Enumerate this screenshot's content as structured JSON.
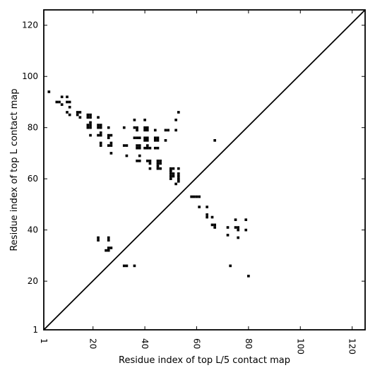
{
  "chart_data": {
    "type": "scatter",
    "title": "",
    "xlabel": "Residue index of top L/5 contact map",
    "ylabel": "Residue index of top L contact map",
    "xlim": [
      1,
      125
    ],
    "ylim": [
      1,
      126
    ],
    "xticks": [
      1,
      20,
      40,
      60,
      80,
      100,
      120
    ],
    "yticks": [
      1,
      20,
      40,
      60,
      80,
      100,
      120
    ],
    "x_tick_rotation": 90,
    "grid": false,
    "diagonal_line": true,
    "marker": "square",
    "marker_color": "#000000",
    "lower_triangle_points": [
      [
        22,
        37
      ],
      [
        22,
        36
      ],
      [
        26,
        37
      ],
      [
        26,
        36
      ],
      [
        26,
        33
      ],
      [
        27,
        33
      ],
      [
        25,
        32
      ],
      [
        26,
        32
      ],
      [
        32,
        26
      ],
      [
        33,
        26
      ],
      [
        36,
        26
      ],
      [
        73,
        26
      ],
      [
        80,
        22
      ],
      [
        58,
        53
      ],
      [
        59,
        53
      ],
      [
        60,
        53
      ],
      [
        61,
        53
      ],
      [
        61,
        49
      ],
      [
        64,
        49
      ],
      [
        64,
        46
      ],
      [
        64,
        45
      ],
      [
        66,
        45
      ],
      [
        66,
        42
      ],
      [
        67,
        42
      ],
      [
        67,
        41
      ],
      [
        72,
        41
      ],
      [
        72,
        38
      ],
      [
        75,
        44
      ],
      [
        79,
        44
      ],
      [
        75,
        41
      ],
      [
        76,
        41
      ],
      [
        76,
        40
      ],
      [
        79,
        40
      ],
      [
        76,
        37
      ]
    ],
    "upper_triangle_points": [
      [
        3,
        94
      ],
      [
        6,
        90
      ],
      [
        7,
        90
      ],
      [
        8,
        92
      ],
      [
        8,
        89
      ],
      [
        10,
        90
      ],
      [
        10,
        92
      ],
      [
        11,
        90
      ],
      [
        11,
        88
      ],
      [
        10,
        86
      ],
      [
        11,
        85
      ],
      [
        14,
        86
      ],
      [
        15,
        86
      ],
      [
        14,
        85
      ],
      [
        15,
        84
      ],
      [
        18,
        85
      ],
      [
        19,
        85
      ],
      [
        18,
        84
      ],
      [
        19,
        84
      ],
      [
        19,
        82
      ],
      [
        18,
        81
      ],
      [
        19,
        81
      ],
      [
        18,
        80
      ],
      [
        19,
        80
      ],
      [
        19,
        77
      ],
      [
        22,
        84
      ],
      [
        22,
        81
      ],
      [
        23,
        81
      ],
      [
        22,
        80
      ],
      [
        23,
        80
      ],
      [
        23,
        78
      ],
      [
        22,
        77
      ],
      [
        23,
        77
      ],
      [
        23,
        74
      ],
      [
        23,
        73
      ],
      [
        26,
        80
      ],
      [
        26,
        77
      ],
      [
        27,
        77
      ],
      [
        26,
        76
      ],
      [
        26,
        73
      ],
      [
        27,
        73
      ],
      [
        27,
        74
      ],
      [
        27,
        70
      ],
      [
        32,
        80
      ],
      [
        32,
        73
      ],
      [
        33,
        73
      ],
      [
        33,
        69
      ],
      [
        36,
        83
      ],
      [
        36,
        80
      ],
      [
        37,
        80
      ],
      [
        37,
        79
      ],
      [
        36,
        76
      ],
      [
        37,
        76
      ],
      [
        38,
        76
      ],
      [
        37,
        73
      ],
      [
        38,
        73
      ],
      [
        37,
        72
      ],
      [
        38,
        72
      ],
      [
        38,
        69
      ],
      [
        37,
        67
      ],
      [
        38,
        67
      ],
      [
        40,
        83
      ],
      [
        40,
        80
      ],
      [
        41,
        80
      ],
      [
        40,
        79
      ],
      [
        41,
        79
      ],
      [
        40,
        76
      ],
      [
        41,
        76
      ],
      [
        40,
        75
      ],
      [
        41,
        75
      ],
      [
        40,
        72
      ],
      [
        41,
        72
      ],
      [
        42,
        72
      ],
      [
        41,
        73
      ],
      [
        41,
        67
      ],
      [
        42,
        67
      ],
      [
        42,
        66
      ],
      [
        42,
        64
      ],
      [
        44,
        79
      ],
      [
        44,
        76
      ],
      [
        45,
        76
      ],
      [
        44,
        75
      ],
      [
        45,
        75
      ],
      [
        44,
        72
      ],
      [
        45,
        72
      ],
      [
        45,
        67
      ],
      [
        46,
        67
      ],
      [
        45,
        66
      ],
      [
        46,
        66
      ],
      [
        45,
        65
      ],
      [
        45,
        64
      ],
      [
        46,
        64
      ],
      [
        48,
        79
      ],
      [
        49,
        79
      ],
      [
        48,
        75
      ],
      [
        50,
        64
      ],
      [
        51,
        64
      ],
      [
        50,
        63
      ],
      [
        50,
        62
      ],
      [
        51,
        62
      ],
      [
        50,
        61
      ],
      [
        50,
        60
      ],
      [
        51,
        61
      ],
      [
        52,
        83
      ],
      [
        52,
        79
      ],
      [
        53,
        86
      ],
      [
        53,
        64
      ],
      [
        53,
        62
      ],
      [
        53,
        61
      ],
      [
        53,
        60
      ],
      [
        53,
        59
      ],
      [
        52,
        58
      ],
      [
        67,
        75
      ]
    ]
  }
}
